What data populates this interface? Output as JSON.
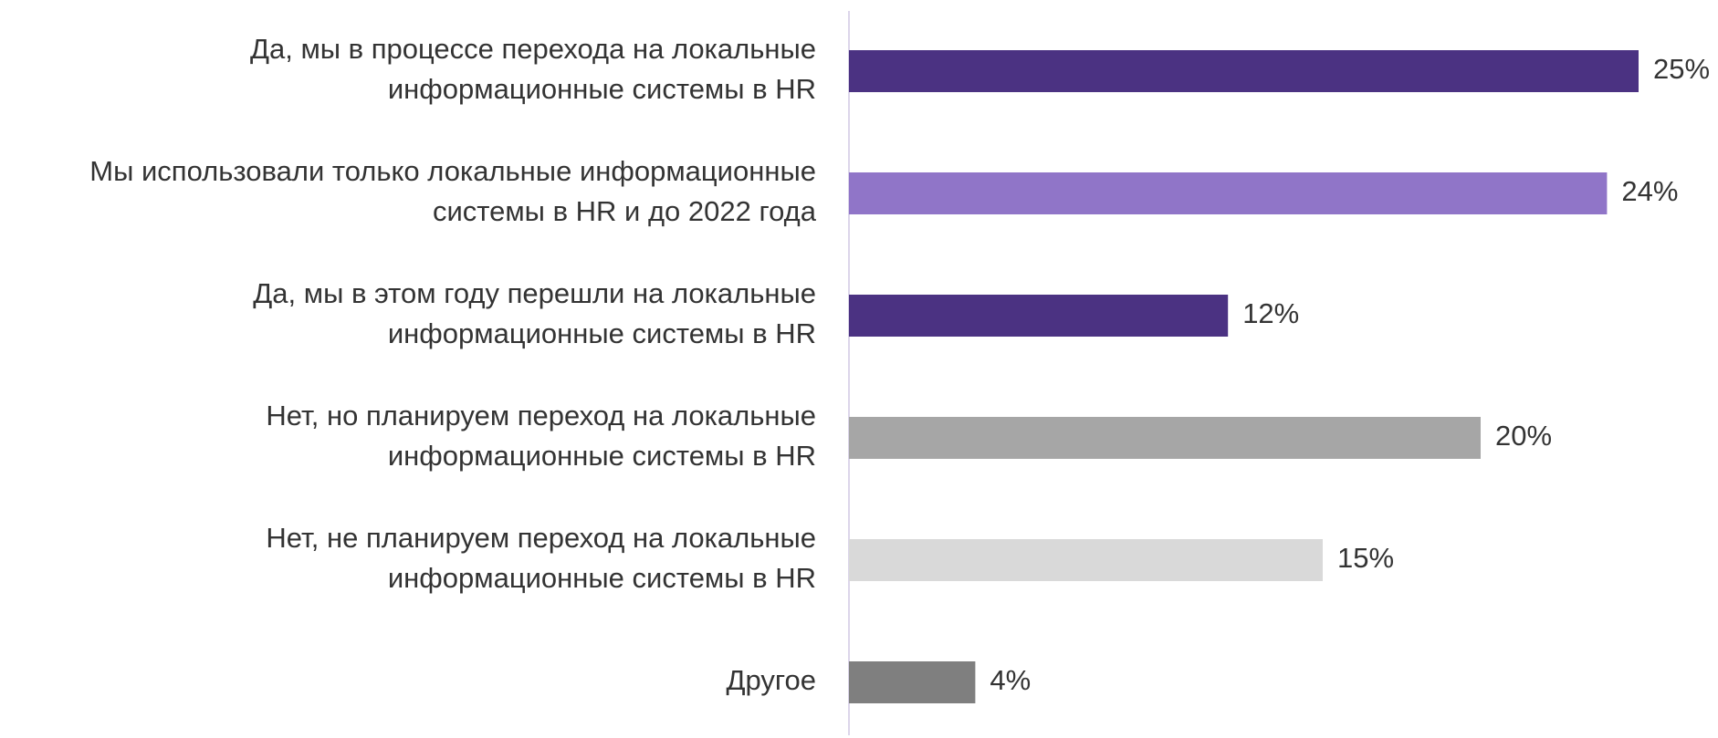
{
  "chart_data": {
    "type": "bar",
    "orientation": "horizontal",
    "categories": [
      "Да, мы в процессе перехода на локальные\nинформационные системы в HR",
      "Мы использовали только локальные информационные\nсистемы в HR и до 2022 года",
      "Да, мы в этом году перешли на локальные\nинформационные системы в HR",
      "Нет, но планируем переход на локальные\nинформационные системы в HR",
      "Нет, не планируем переход на локальные\nинформационные системы в HR",
      "Другое"
    ],
    "values": [
      25,
      24,
      12,
      20,
      15,
      4
    ],
    "value_labels": [
      "25%",
      "24%",
      "12%",
      "20%",
      "15%",
      "4%"
    ],
    "colors": [
      "#4b3282",
      "#9075c8",
      "#4b3282",
      "#a6a6a6",
      "#d9d9d9",
      "#7f7f7f"
    ],
    "xlim": [
      0,
      25
    ]
  }
}
